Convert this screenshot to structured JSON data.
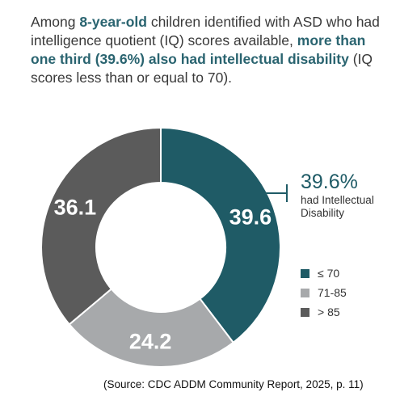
{
  "headline": {
    "part1": "Among ",
    "highlight1": "8-year-old",
    "part2": " children identified with ASD who had intelligence quotient (IQ) scores available, ",
    "highlight2": "more than one third (39.6%) also had intellectual disability",
    "part3": " (IQ scores less than or equal to 70)."
  },
  "chart_data": {
    "type": "pie",
    "subtype": "donut",
    "categories": [
      "≤ 70",
      "71-85",
      "> 85"
    ],
    "values": [
      39.6,
      24.2,
      36.1
    ],
    "data_labels": [
      "39.6",
      "24.2",
      "36.1"
    ],
    "colors": [
      "#1f5b66",
      "#a7a9ab",
      "#5b5b5b"
    ],
    "legend_position": "right"
  },
  "callout": {
    "value": "39.6%",
    "text": "had Intellectual Disability"
  },
  "legend": [
    {
      "label": "≤ 70",
      "color": "#1f5b66"
    },
    {
      "label": "71-85",
      "color": "#a7a9ab"
    },
    {
      "label": "> 85",
      "color": "#5b5b5b"
    }
  ],
  "source": "(Source: CDC ADDM Community Report, 2025, p. 11)"
}
